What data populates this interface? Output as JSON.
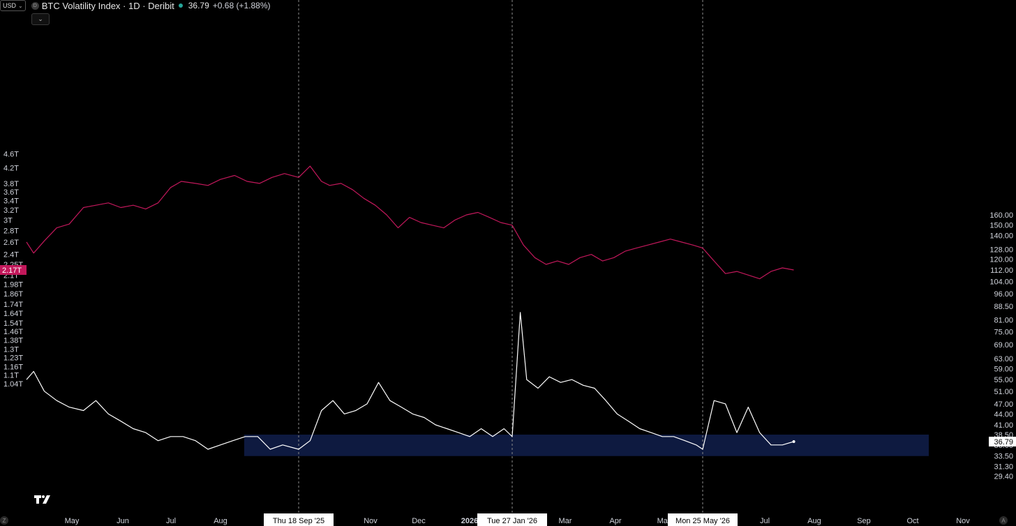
{
  "header": {
    "currency": "USD",
    "symbol_badge": "D",
    "title": "BTC Volatility Index · 1D · Deribit",
    "last_value": "36.79",
    "change": "+0.68 (+1.88%)",
    "colors": {
      "status": "#26a69a"
    }
  },
  "icons": {
    "currency_chevron": "chevron-down-icon",
    "collapse": "chevron-down-icon",
    "logo": "tradingview-logo-icon",
    "z": "z-icon",
    "a": "a-icon"
  },
  "buttons": {
    "z_label": "Z",
    "a_label": "A"
  },
  "chart_data": {
    "type": "line",
    "time_labels": [
      "May",
      "Jun",
      "Jul",
      "Aug",
      "S",
      "Thu 18 Sep '25",
      "Nov",
      "Dec",
      "2026",
      "Tue 27 Jan '26",
      "Mar",
      "Apr",
      "May",
      "Mon 25 May '26",
      "Jul",
      "Aug",
      "Sep",
      "Oct",
      "Nov"
    ],
    "left_axis": {
      "ticks": [
        "4.6T",
        "4.2T",
        "3.8T",
        "3.6T",
        "3.4T",
        "3.2T",
        "3T",
        "2.8T",
        "2.6T",
        "2.4T",
        "2.25T",
        "2.1T",
        "1.98T",
        "1.86T",
        "1.74T",
        "1.64T",
        "1.54T",
        "1.46T",
        "1.38T",
        "1.3T",
        "1.23T",
        "1.16T",
        "1.1T",
        "1.04T"
      ],
      "current_label": "2.17T",
      "current_value": 2.17,
      "scale": "log"
    },
    "right_axis": {
      "ticks": [
        "160.00",
        "150.00",
        "140.00",
        "128.00",
        "120.00",
        "112.00",
        "104.00",
        "96.00",
        "88.50",
        "81.00",
        "75.00",
        "69.00",
        "63.00",
        "59.00",
        "55.00",
        "51.00",
        "47.00",
        "44.00",
        "41.00",
        "38.50",
        "36.00",
        "33.50",
        "31.30",
        "29.40"
      ],
      "current_label": "36.79",
      "current_value": 36.79,
      "scale": "log"
    },
    "crosshair_dates": [
      "Thu 18 Sep '25",
      "Tue 27 Jan '26",
      "Mon 25 May '26"
    ],
    "highlight_zone": {
      "from": 33.5,
      "to": 38.5
    },
    "series": [
      {
        "axis": "left",
        "color": "#c2185b",
        "x": [
          "2025-04-18",
          "2025-04-22",
          "2025-04-28",
          "2025-05-05",
          "2025-05-12",
          "2025-05-20",
          "2025-05-27",
          "2025-06-03",
          "2025-06-10",
          "2025-06-17",
          "2025-06-24",
          "2025-07-01",
          "2025-07-08",
          "2025-07-14",
          "2025-07-22",
          "2025-07-29",
          "2025-08-05",
          "2025-08-13",
          "2025-08-20",
          "2025-08-27",
          "2025-09-03",
          "2025-09-10",
          "2025-09-18",
          "2025-09-25",
          "2025-10-02",
          "2025-10-07",
          "2025-10-14",
          "2025-10-21",
          "2025-10-28",
          "2025-11-04",
          "2025-11-11",
          "2025-11-18",
          "2025-11-25",
          "2025-12-02",
          "2025-12-09",
          "2025-12-16",
          "2025-12-23",
          "2025-12-30",
          "2026-01-06",
          "2026-01-13",
          "2026-01-20",
          "2026-01-27",
          "2026-02-03",
          "2026-02-10",
          "2026-02-17",
          "2026-02-24",
          "2026-03-03",
          "2026-03-10",
          "2026-03-17",
          "2026-03-24",
          "2026-03-31",
          "2026-04-07",
          "2026-04-14",
          "2026-04-21",
          "2026-04-28",
          "2026-05-05",
          "2026-05-12",
          "2026-05-19",
          "2026-05-25",
          "2026-06-01",
          "2026-06-08",
          "2026-06-15",
          "2026-06-22",
          "2026-06-29",
          "2026-07-06",
          "2026-07-13",
          "2026-07-20"
        ],
        "values": [
          2.6,
          2.42,
          2.62,
          2.85,
          2.92,
          3.25,
          3.3,
          3.35,
          3.25,
          3.3,
          3.22,
          3.35,
          3.7,
          3.85,
          3.8,
          3.75,
          3.9,
          4.0,
          3.85,
          3.8,
          3.95,
          4.05,
          3.95,
          4.25,
          3.85,
          3.75,
          3.8,
          3.65,
          3.45,
          3.3,
          3.1,
          2.85,
          3.05,
          2.95,
          2.9,
          2.85,
          3.0,
          3.1,
          3.15,
          3.05,
          2.95,
          2.9,
          2.55,
          2.35,
          2.25,
          2.3,
          2.25,
          2.35,
          2.4,
          2.3,
          2.35,
          2.45,
          2.5,
          2.55,
          2.6,
          2.65,
          2.6,
          2.55,
          2.5,
          2.3,
          2.12,
          2.15,
          2.1,
          2.05,
          2.15,
          2.2,
          2.17
        ]
      },
      {
        "axis": "right",
        "color": "#ffffff",
        "x": [
          "2025-04-18",
          "2025-04-22",
          "2025-04-28",
          "2025-05-05",
          "2025-05-12",
          "2025-05-20",
          "2025-05-27",
          "2025-06-03",
          "2025-06-10",
          "2025-06-17",
          "2025-06-24",
          "2025-07-01",
          "2025-07-08",
          "2025-07-15",
          "2025-07-22",
          "2025-07-29",
          "2025-08-05",
          "2025-08-12",
          "2025-08-19",
          "2025-08-26",
          "2025-09-02",
          "2025-09-09",
          "2025-09-18",
          "2025-09-25",
          "2025-10-02",
          "2025-10-09",
          "2025-10-16",
          "2025-10-23",
          "2025-10-30",
          "2025-11-06",
          "2025-11-13",
          "2025-11-20",
          "2025-11-27",
          "2025-12-04",
          "2025-12-11",
          "2025-12-18",
          "2025-12-25",
          "2026-01-01",
          "2026-01-08",
          "2026-01-15",
          "2026-01-22",
          "2026-01-27",
          "2026-02-01",
          "2026-02-05",
          "2026-02-12",
          "2026-02-19",
          "2026-02-26",
          "2026-03-05",
          "2026-03-12",
          "2026-03-19",
          "2026-03-26",
          "2026-04-02",
          "2026-04-09",
          "2026-04-16",
          "2026-04-23",
          "2026-04-30",
          "2026-05-07",
          "2026-05-14",
          "2026-05-21",
          "2026-05-25",
          "2026-06-01",
          "2026-06-08",
          "2026-06-15",
          "2026-06-22",
          "2026-06-29",
          "2026-07-06",
          "2026-07-13",
          "2026-07-20"
        ],
        "values": [
          55,
          58,
          51,
          48,
          46,
          45,
          48,
          44,
          42,
          40,
          39,
          37,
          38,
          38,
          37,
          35,
          36,
          37,
          38,
          38,
          35,
          36,
          35,
          37,
          45,
          48,
          44,
          45,
          47,
          54,
          48,
          46,
          44,
          43,
          41,
          40,
          39,
          38,
          40,
          38,
          40,
          38,
          85,
          55,
          52,
          56,
          54,
          55,
          53,
          52,
          48,
          44,
          42,
          40,
          39,
          38,
          38,
          37,
          36,
          35,
          48,
          47,
          39,
          46,
          39,
          36,
          36,
          36.79
        ]
      }
    ]
  }
}
